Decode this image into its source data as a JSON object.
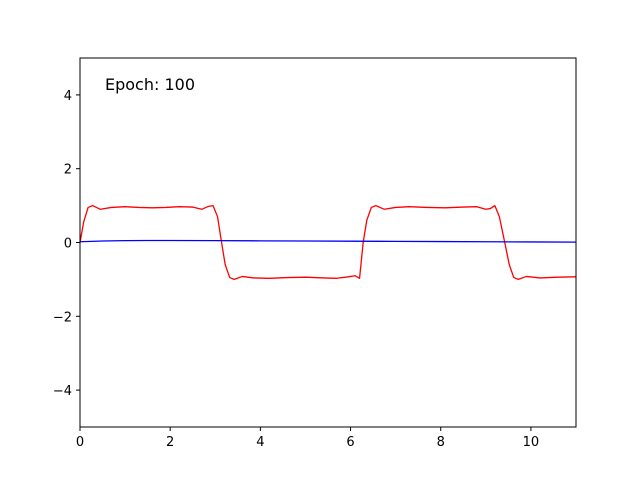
{
  "chart_data": {
    "type": "line",
    "title": "",
    "xlabel": "",
    "ylabel": "",
    "xlim": [
      0,
      11
    ],
    "ylim": [
      -5,
      5
    ],
    "grid": false,
    "legend": "none",
    "annotation": "Epoch: 100",
    "x_ticks": [
      0,
      2,
      4,
      6,
      8,
      10
    ],
    "x_tick_labels": [
      "0",
      "2",
      "4",
      "6",
      "8",
      "10"
    ],
    "y_ticks": [
      -4,
      -2,
      0,
      2,
      4
    ],
    "y_tick_labels": [
      "−4",
      "−2",
      "0",
      "2",
      "4"
    ],
    "series": [
      {
        "color": "#ff0000",
        "x": [
          0,
          0.08,
          0.18,
          0.28,
          0.45,
          0.7,
          1.0,
          1.3,
          1.6,
          1.9,
          2.2,
          2.5,
          2.7,
          2.85,
          2.95,
          3.05,
          3.14,
          3.22,
          3.32,
          3.42,
          3.6,
          3.85,
          4.2,
          4.6,
          5.0,
          5.4,
          5.7,
          5.95,
          6.1,
          6.2,
          6.28,
          6.36,
          6.46,
          6.56,
          6.75,
          7.0,
          7.3,
          7.7,
          8.1,
          8.5,
          8.8,
          9.0,
          9.1,
          9.2,
          9.3,
          9.42,
          9.52,
          9.62,
          9.72,
          9.9,
          10.2,
          10.6,
          11.0
        ],
        "y": [
          0.0,
          0.55,
          0.95,
          1.0,
          0.9,
          0.95,
          0.97,
          0.95,
          0.94,
          0.95,
          0.97,
          0.96,
          0.9,
          0.98,
          1.0,
          0.7,
          0.0,
          -0.6,
          -0.95,
          -1.0,
          -0.92,
          -0.96,
          -0.97,
          -0.95,
          -0.94,
          -0.96,
          -0.97,
          -0.93,
          -0.9,
          -0.97,
          0.0,
          0.6,
          0.95,
          1.0,
          0.9,
          0.95,
          0.97,
          0.95,
          0.94,
          0.96,
          0.97,
          0.9,
          0.92,
          1.0,
          0.7,
          0.0,
          -0.6,
          -0.95,
          -1.0,
          -0.92,
          -0.96,
          -0.94,
          -0.93
        ]
      },
      {
        "color": "#0000ff",
        "x": [
          0,
          0.5,
          1.0,
          1.5,
          2.0,
          3.0,
          4.0,
          5.0,
          6.0,
          7.0,
          8.0,
          9.0,
          10.0,
          11.0
        ],
        "y": [
          0.02,
          0.04,
          0.05,
          0.055,
          0.055,
          0.05,
          0.045,
          0.04,
          0.035,
          0.03,
          0.025,
          0.02,
          0.015,
          0.01
        ]
      }
    ]
  }
}
